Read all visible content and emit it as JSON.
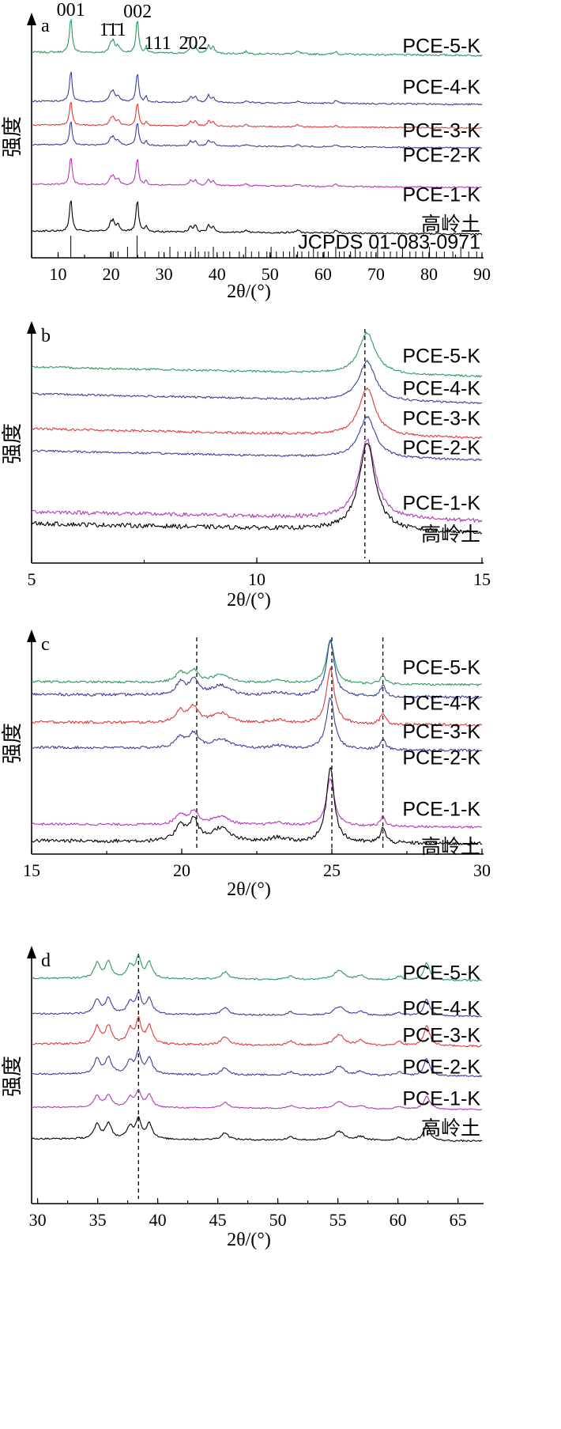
{
  "chart_data": [
    {
      "panel": "a",
      "type": "line",
      "xlabel": "2θ/(°)",
      "ylabel": "强度",
      "xlim": [
        5,
        90
      ],
      "xticks": [
        10,
        20,
        30,
        40,
        50,
        60,
        70,
        80,
        90
      ],
      "series": [
        {
          "name": "PCE-5-K",
          "color": "#2e9a5e"
        },
        {
          "name": "PCE-4-K",
          "color": "#3b3f9c"
        },
        {
          "name": "PCE-3-K",
          "color": "#e03a3a"
        },
        {
          "name": "PCE-2-K",
          "color": "#3b3f9c"
        },
        {
          "name": "PCE-1-K",
          "color": "#b23ab8"
        },
        {
          "name": "高岭土",
          "color": "#000000"
        }
      ],
      "peak_labels": [
        {
          "text": "001",
          "x": 12.4
        },
        {
          "text": "1̄1̄1",
          "x": 20.3
        },
        {
          "text": "002",
          "x": 25.0
        },
        {
          "text": "111",
          "x": 28.8
        },
        {
          "text": "2̄02",
          "x": 35.5
        }
      ],
      "reference": {
        "label": "JCPDS 01-083-0971",
        "x": [
          12.4,
          19.9,
          20.4,
          21.3,
          23.1,
          24.9,
          26.4,
          29.0,
          31.1,
          32.6,
          34.0,
          35.0,
          35.9,
          36.5,
          37.7,
          38.4,
          39.3,
          41.2,
          42.4,
          44.2,
          45.4,
          46.5,
          47.9,
          49.4,
          50.2,
          51.2,
          52.5,
          53.7,
          54.5,
          55.2,
          56.0,
          57.3,
          58.2,
          59.0,
          60.2,
          61.0,
          62.4,
          63.1,
          64.0,
          65.2,
          66.1,
          67.0,
          68.2,
          69.1,
          70.3,
          71.5,
          72.7,
          73.9,
          75.0,
          76.4,
          77.5,
          78.8,
          80.1,
          81.4,
          82.9,
          84.5,
          86.0,
          87.5,
          89.0
        ]
      }
    },
    {
      "panel": "b",
      "type": "line",
      "xlabel": "2θ/(°)",
      "ylabel": "强度",
      "xlim": [
        5,
        15
      ],
      "xticks": [
        5,
        10,
        15
      ],
      "reference_lines": [
        12.4
      ],
      "series": [
        {
          "name": "PCE-5-K",
          "color": "#2e9a5e"
        },
        {
          "name": "PCE-4-K",
          "color": "#3b3f9c"
        },
        {
          "name": "PCE-3-K",
          "color": "#e03a3a"
        },
        {
          "name": "PCE-2-K",
          "color": "#3b3f9c"
        },
        {
          "name": "PCE-1-K",
          "color": "#b23ab8"
        },
        {
          "name": "高岭土",
          "color": "#000000"
        }
      ]
    },
    {
      "panel": "c",
      "type": "line",
      "xlabel": "2θ/(°)",
      "ylabel": "强度",
      "xlim": [
        15,
        30
      ],
      "xticks": [
        15,
        20,
        25,
        30
      ],
      "reference_lines": [
        20.5,
        25.0,
        26.7
      ],
      "series": [
        {
          "name": "PCE-5-K",
          "color": "#2e9a5e"
        },
        {
          "name": "PCE-4-K",
          "color": "#3b3f9c"
        },
        {
          "name": "PCE-3-K",
          "color": "#e03a3a"
        },
        {
          "name": "PCE-2-K",
          "color": "#3b3f9c"
        },
        {
          "name": "PCE-1-K",
          "color": "#b23ab8"
        },
        {
          "name": "高岭土",
          "color": "#000000"
        }
      ]
    },
    {
      "panel": "d",
      "type": "line",
      "xlabel": "2θ/(°)",
      "ylabel": "强度",
      "xlim": [
        29.5,
        67
      ],
      "xticks": [
        30,
        35,
        40,
        45,
        50,
        55,
        60,
        65
      ],
      "reference_lines": [
        38.4
      ],
      "series": [
        {
          "name": "PCE-5-K",
          "color": "#2e9a5e"
        },
        {
          "name": "PCE-4-K",
          "color": "#3b3f9c"
        },
        {
          "name": "PCE-3-K",
          "color": "#e03a3a"
        },
        {
          "name": "PCE-2-K",
          "color": "#3b3f9c"
        },
        {
          "name": "PCE-1-K",
          "color": "#b23ab8"
        },
        {
          "name": "高岭土",
          "color": "#000000"
        }
      ]
    }
  ]
}
